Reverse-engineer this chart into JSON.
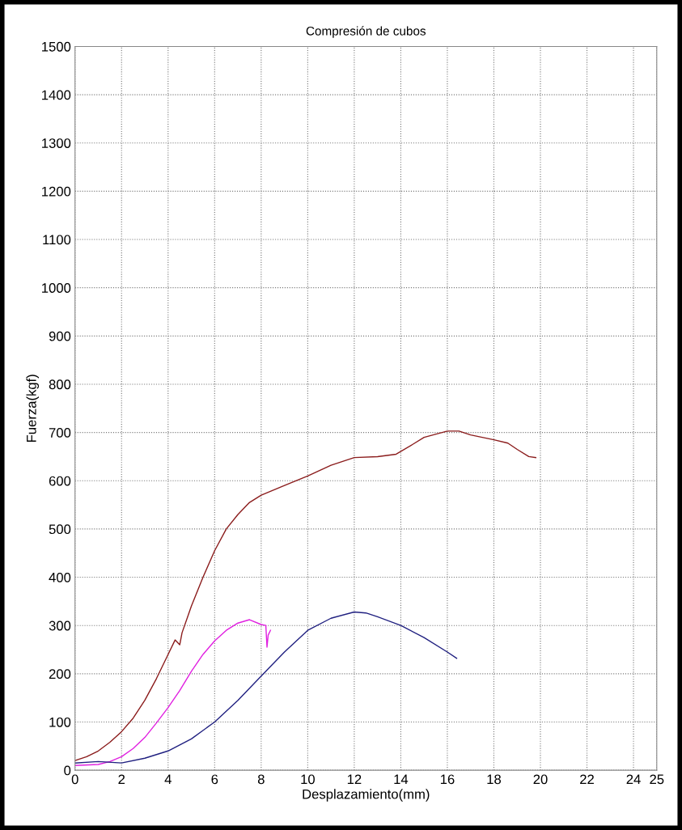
{
  "chart_data": {
    "type": "line",
    "title": "Compresión de cubos",
    "xlabel": "Desplazamiento(mm)",
    "ylabel": "Fuerza(kgf)",
    "xlim": [
      0,
      25
    ],
    "xticks": [
      0,
      2,
      4,
      6,
      8,
      10,
      12,
      14,
      16,
      18,
      20,
      22,
      24,
      25
    ],
    "ylim": [
      0,
      1500
    ],
    "yticks": [
      0,
      100,
      200,
      300,
      400,
      500,
      600,
      700,
      800,
      900,
      1000,
      1100,
      1200,
      1300,
      1400,
      1500
    ],
    "grid": true,
    "line_style": "solid",
    "marker": "none",
    "series": [
      {
        "color": "#8b1c1c",
        "x": [
          0,
          0.5,
          1,
          1.5,
          2,
          2.5,
          3,
          3.5,
          4,
          4.3,
          4.5,
          4.6,
          5,
          5.5,
          6,
          6.5,
          7,
          7.5,
          8,
          9,
          10,
          11,
          12,
          13,
          13.8,
          14.5,
          15,
          16,
          16.5,
          17,
          18,
          18.6,
          19,
          19.5,
          19.8
        ],
        "values": [
          20,
          28,
          40,
          58,
          80,
          108,
          145,
          190,
          240,
          270,
          260,
          285,
          340,
          400,
          455,
          500,
          530,
          555,
          570,
          590,
          610,
          632,
          648,
          650,
          655,
          675,
          690,
          703,
          703,
          695,
          685,
          678,
          665,
          650,
          648
        ]
      },
      {
        "color": "#e020e0",
        "x": [
          0,
          1,
          1.5,
          2,
          2.5,
          3,
          3.5,
          4,
          4.5,
          5,
          5.5,
          6,
          6.5,
          7,
          7.5,
          8,
          8.2,
          8.25,
          8.3,
          8.4
        ],
        "values": [
          10,
          12,
          18,
          28,
          45,
          68,
          98,
          130,
          165,
          205,
          240,
          268,
          290,
          305,
          312,
          302,
          300,
          255,
          280,
          290
        ]
      },
      {
        "color": "#202080",
        "x": [
          0,
          1,
          2,
          3,
          4,
          5,
          6,
          7,
          8,
          9,
          10,
          11,
          12,
          12.5,
          13,
          14,
          15,
          16,
          16.4
        ],
        "values": [
          15,
          18,
          15,
          25,
          40,
          65,
          100,
          145,
          195,
          245,
          290,
          315,
          328,
          326,
          318,
          300,
          275,
          245,
          232
        ]
      }
    ]
  }
}
